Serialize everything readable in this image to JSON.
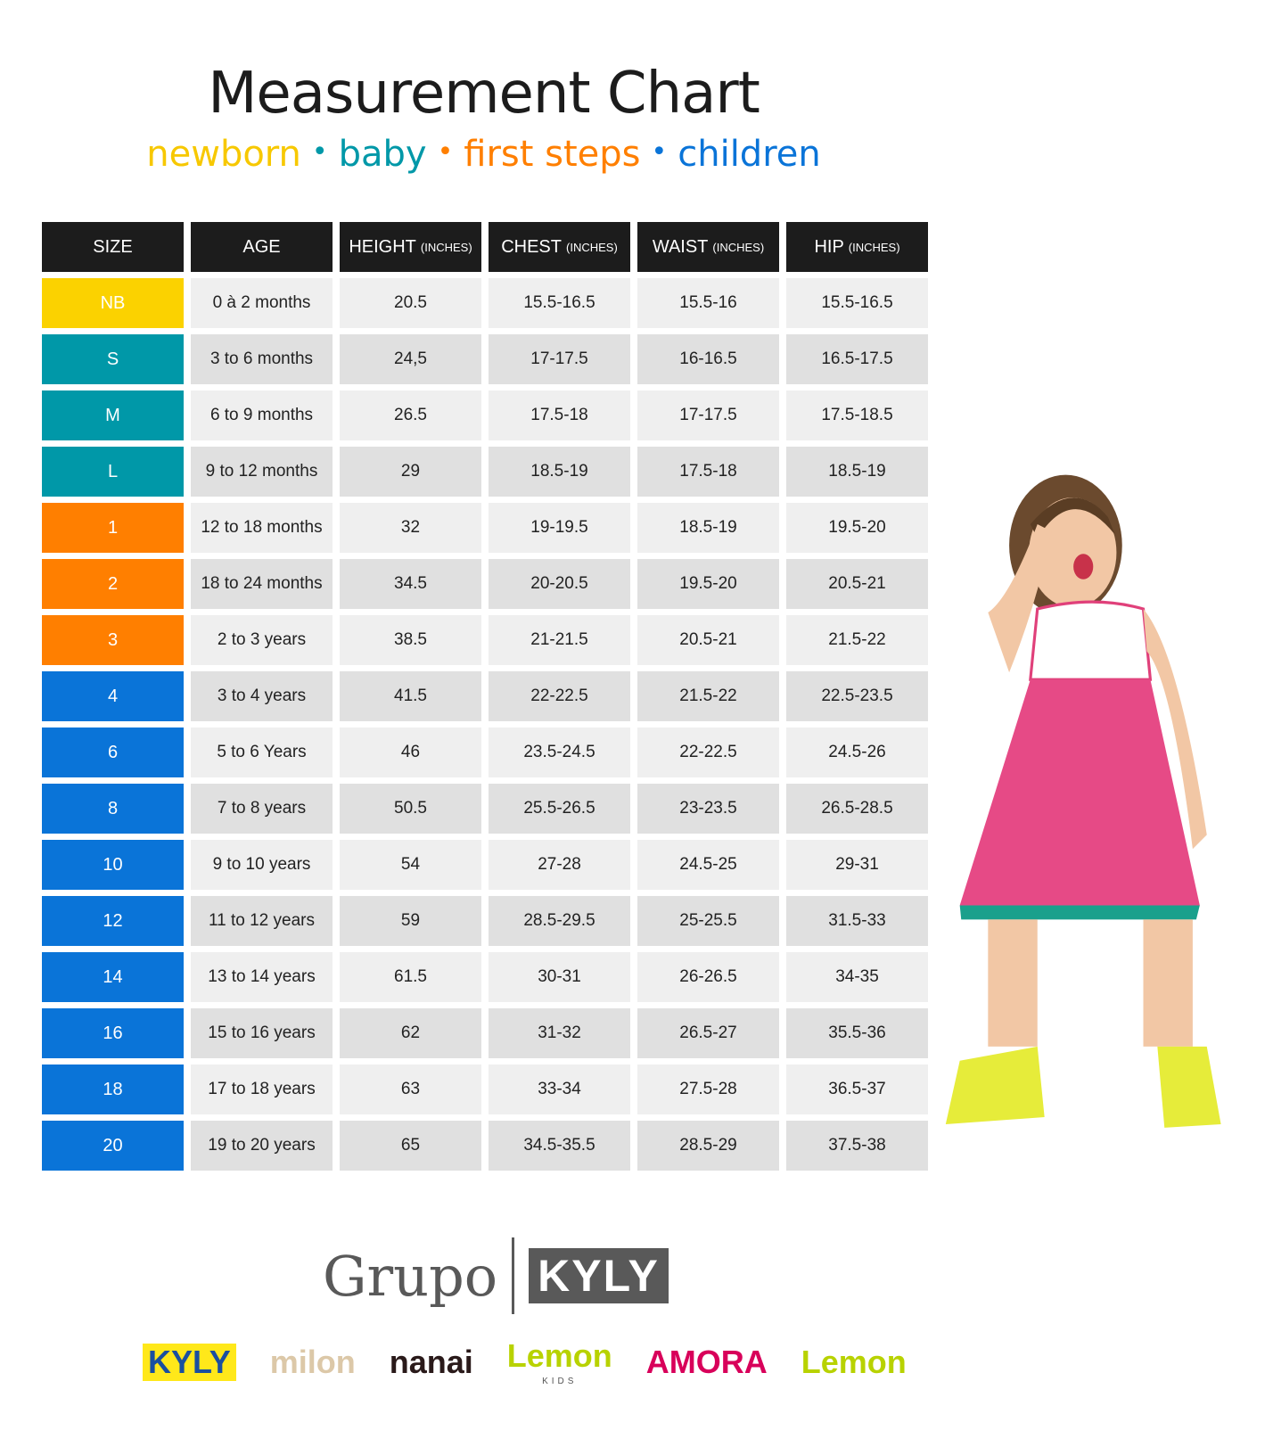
{
  "title": "Measurement Chart",
  "subtitle": [
    {
      "label": "newborn",
      "color": "#f7c800"
    },
    {
      "label": "baby",
      "color": "#0098a8"
    },
    {
      "label": "first steps",
      "color": "#ff7f00"
    },
    {
      "label": "children",
      "color": "#0a74d8"
    }
  ],
  "table": {
    "headers": [
      {
        "label": "SIZE",
        "unit": ""
      },
      {
        "label": "AGE",
        "unit": ""
      },
      {
        "label": "HEIGHT",
        "unit": "(INCHES)"
      },
      {
        "label": "CHEST",
        "unit": "(INCHES)"
      },
      {
        "label": "WAIST",
        "unit": "(INCHES)"
      },
      {
        "label": "HIP",
        "unit": "(INCHES)"
      }
    ],
    "rows": [
      {
        "size": "NB",
        "color": "#fbd200",
        "cells": [
          "0 à 2 months",
          "20.5",
          "15.5-16.5",
          "15.5-16",
          "15.5-16.5"
        ]
      },
      {
        "size": "S",
        "color": "#0098a8",
        "cells": [
          "3 to 6 months",
          "24,5",
          "17-17.5",
          "16-16.5",
          "16.5-17.5"
        ]
      },
      {
        "size": "M",
        "color": "#0098a8",
        "cells": [
          "6 to 9 months",
          "26.5",
          "17.5-18",
          "17-17.5",
          "17.5-18.5"
        ]
      },
      {
        "size": "L",
        "color": "#0098a8",
        "cells": [
          "9 to 12 months",
          "29",
          "18.5-19",
          "17.5-18",
          "18.5-19"
        ]
      },
      {
        "size": "1",
        "color": "#ff7f00",
        "cells": [
          "12 to 18 months",
          "32",
          "19-19.5",
          "18.5-19",
          "19.5-20"
        ]
      },
      {
        "size": "2",
        "color": "#ff7f00",
        "cells": [
          "18 to 24 months",
          "34.5",
          "20-20.5",
          "19.5-20",
          "20.5-21"
        ]
      },
      {
        "size": "3",
        "color": "#ff7f00",
        "cells": [
          "2 to 3 years",
          "38.5",
          "21-21.5",
          "20.5-21",
          "21.5-22"
        ]
      },
      {
        "size": "4",
        "color": "#0a74d8",
        "cells": [
          "3 to 4 years",
          "41.5",
          "22-22.5",
          "21.5-22",
          "22.5-23.5"
        ]
      },
      {
        "size": "6",
        "color": "#0a74d8",
        "cells": [
          "5 to 6 Years",
          "46",
          "23.5-24.5",
          "22-22.5",
          "24.5-26"
        ]
      },
      {
        "size": "8",
        "color": "#0a74d8",
        "cells": [
          "7 to 8 years",
          "50.5",
          "25.5-26.5",
          "23-23.5",
          "26.5-28.5"
        ]
      },
      {
        "size": "10",
        "color": "#0a74d8",
        "cells": [
          "9 to 10 years",
          "54",
          "27-28",
          "24.5-25",
          "29-31"
        ]
      },
      {
        "size": "12",
        "color": "#0a74d8",
        "cells": [
          "11 to 12 years",
          "59",
          "28.5-29.5",
          "25-25.5",
          "31.5-33"
        ]
      },
      {
        "size": "14",
        "color": "#0a74d8",
        "cells": [
          "13 to 14 years",
          "61.5",
          "30-31",
          "26-26.5",
          "34-35"
        ]
      },
      {
        "size": "16",
        "color": "#0a74d8",
        "cells": [
          "15 to 16 years",
          "62",
          "31-32",
          "26.5-27",
          "35.5-36"
        ]
      },
      {
        "size": "18",
        "color": "#0a74d8",
        "cells": [
          "17 to 18 years",
          "63",
          "33-34",
          "27.5-28",
          "36.5-37"
        ]
      },
      {
        "size": "20",
        "color": "#0a74d8",
        "cells": [
          "19 to 20 years",
          "65",
          "34.5-35.5",
          "28.5-29",
          "37.5-38"
        ]
      }
    ]
  },
  "logo": {
    "grupo": "Grupo",
    "kyly": "KYLY"
  },
  "brands": [
    {
      "label": "KYLY",
      "color": "#1a4fa0",
      "bg": "#ffe81a"
    },
    {
      "label": "milon",
      "color": "#dcc8a8",
      "bg": ""
    },
    {
      "label": "nanai",
      "color": "#2a1a1a",
      "bg": ""
    },
    {
      "label": "Lemon",
      "sub": "KIDS",
      "color": "#b8d200",
      "bg": ""
    },
    {
      "label": "AMORA",
      "color": "#d8005a",
      "bg": ""
    },
    {
      "label": "Lemon",
      "color": "#b8d200",
      "bg": ""
    }
  ]
}
